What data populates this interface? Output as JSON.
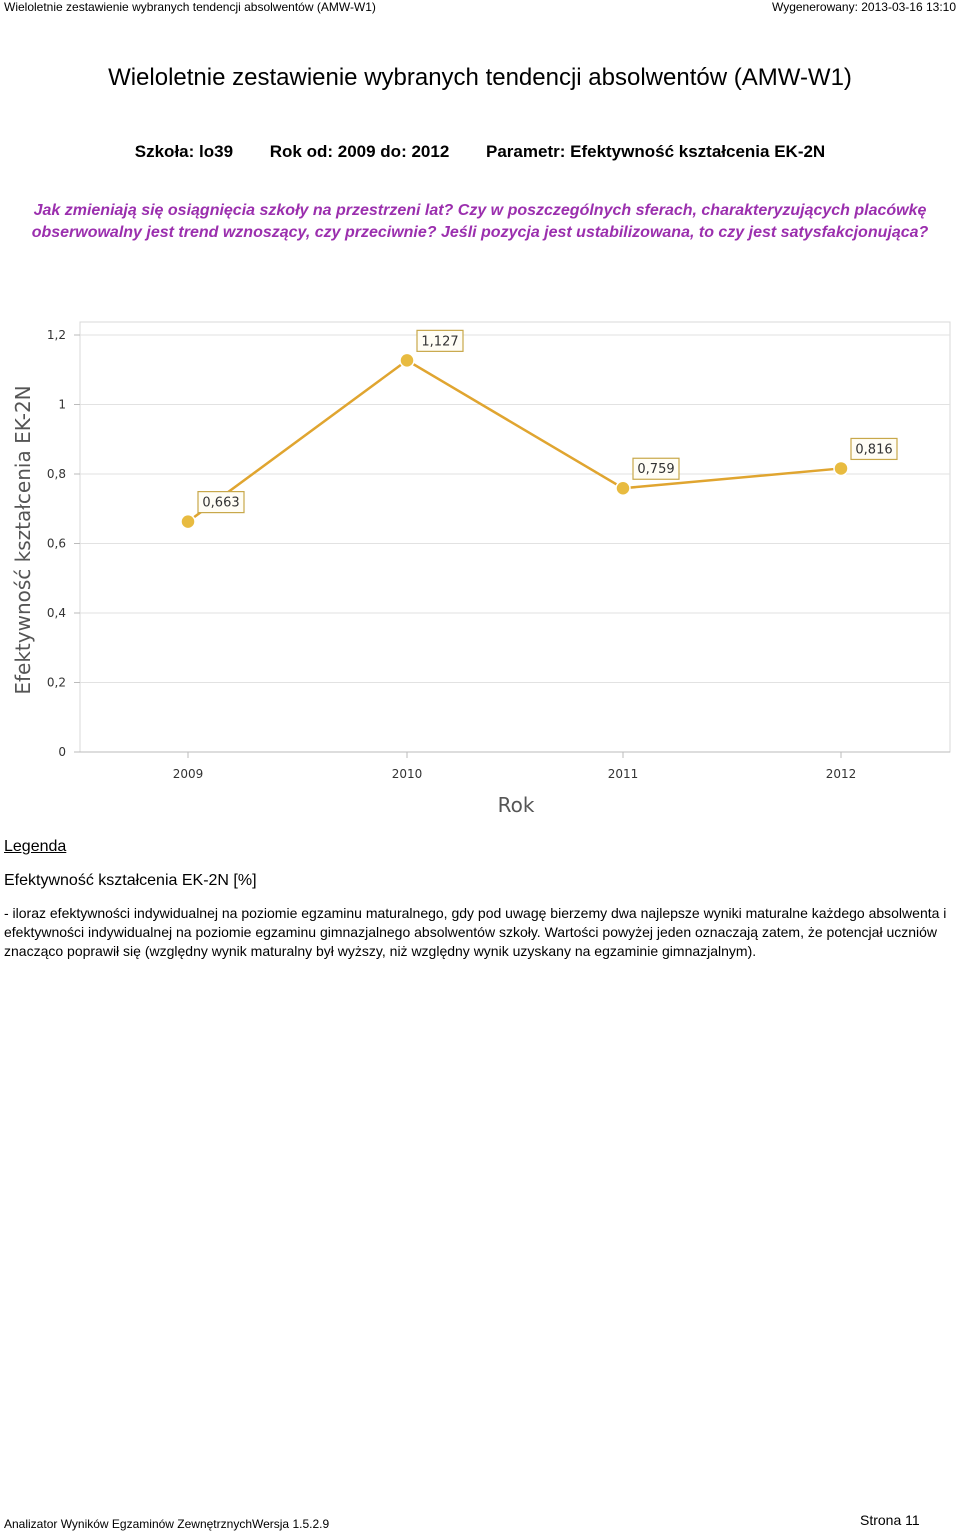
{
  "header": {
    "left": "Wieloletnie zestawienie wybranych tendencji absolwentów (AMW-W1)",
    "right": "Wygenerowany: 2013-03-16 13:10"
  },
  "title": "Wieloletnie zestawienie wybranych tendencji absolwentów (AMW-W1)",
  "params": {
    "school": "Szkoła: lo39",
    "years": "Rok od: 2009 do: 2012",
    "parameter": "Parametr: Efektywność kształcenia EK-2N"
  },
  "question": "Jak zmieniają się osiągnięcia szkoły na przestrzeni lat? Czy w poszczególnych sferach, charakteryzujących placówkę obserwowalny jest trend wznoszący, czy przeciwnie? Jeśli pozycja jest ustabilizowana, to czy jest satysfakcjonująca?",
  "legend": {
    "title": "Legenda",
    "name": "Efektywność kształcenia EK-2N [%]",
    "description": "- iloraz efektywności indywidualnej na poziomie egzaminu maturalnego, gdy pod uwagę bierzemy dwa najlepsze wyniki maturalne każdego absolwenta i efektywności indywidualnej na poziomie egzaminu gimnazjalnego absolwentów szkoły. Wartości powyżej jeden oznaczają zatem, że potencjał uczniów znacząco poprawił się (względny wynik maturalny był wyższy, niż względny wynik uzyskany na egzaminie gimnazjalnym)."
  },
  "footer": {
    "left": "Analizator Wyników Egzaminów ZewnętrznychWersja 1.5.2.9",
    "right": "Strona 11"
  },
  "colors": {
    "line": "#e0a530",
    "marker": "#e8bb40",
    "label_border": "#c8a84a",
    "question": "#9b2fae"
  },
  "chart_data": {
    "type": "line",
    "categories": [
      "2009",
      "2010",
      "2011",
      "2012"
    ],
    "values": [
      0.663,
      1.127,
      0.759,
      0.816
    ],
    "value_labels": [
      "0,663",
      "1,127",
      "0,759",
      "0,816"
    ],
    "y_ticks": [
      "0",
      "0,2",
      "0,4",
      "0,6",
      "0,8",
      "1",
      "1,2"
    ],
    "ylim": [
      0,
      1.2
    ],
    "xlabel": "Rok",
    "ylabel": "Efektywność kształcenia EK-2N",
    "grid": true
  }
}
